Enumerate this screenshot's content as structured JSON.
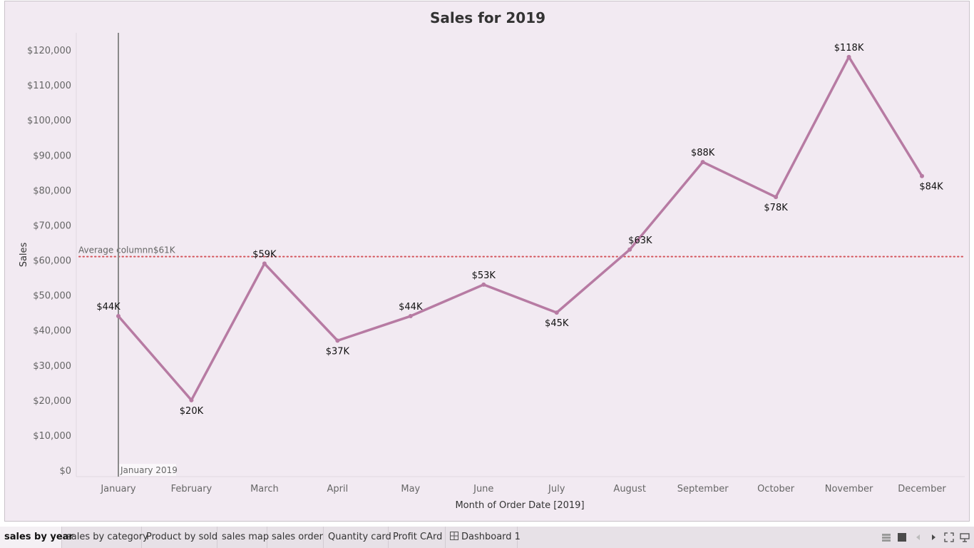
{
  "chart_data": {
    "type": "line",
    "title": "Sales for 2019",
    "xlabel": "Month of Order Date [2019]",
    "ylabel": "Sales",
    "categories": [
      "January",
      "February",
      "March",
      "April",
      "May",
      "June",
      "July",
      "August",
      "September",
      "October",
      "November",
      "December"
    ],
    "values": [
      44000,
      20000,
      59000,
      37000,
      44000,
      53000,
      45000,
      63000,
      88000,
      78000,
      118000,
      84000
    ],
    "data_labels": [
      "$44K",
      "$20K",
      "$59K",
      "$37K",
      "$44K",
      "$53K",
      "$45K",
      "$63K",
      "$88K",
      "$78K",
      "$118K",
      "$84K"
    ],
    "ylim": [
      0,
      125000
    ],
    "yticks": [
      0,
      10000,
      20000,
      30000,
      40000,
      50000,
      60000,
      70000,
      80000,
      90000,
      100000,
      110000,
      120000
    ],
    "ytick_labels": [
      "$0",
      "$10,000",
      "$20,000",
      "$30,000",
      "$40,000",
      "$50,000",
      "$60,000",
      "$70,000",
      "$80,000",
      "$90,000",
      "$100,000",
      "$110,000",
      "$120,000"
    ],
    "line_color": "#b77ba3",
    "grid": false,
    "reference_line": {
      "value": 61000,
      "label": "Average columnn$61K",
      "color": "#d4545b",
      "style": "dotted"
    },
    "marker_line": {
      "category": "January",
      "label": "January 2019"
    }
  },
  "tabs": [
    {
      "label": "sales by year",
      "active": true
    },
    {
      "label": "sales by category",
      "active": false
    },
    {
      "label": "Product  by sold",
      "active": false
    },
    {
      "label": "sales map",
      "active": false
    },
    {
      "label": "sales  order",
      "active": false
    },
    {
      "label": "Quantity card",
      "active": false
    },
    {
      "label": "Profit CArd",
      "active": false
    },
    {
      "label": "Dashboard 1",
      "active": false,
      "icon": "dashboard-grid-icon"
    }
  ],
  "toolbar_icons": [
    "grid-view-icon",
    "single-view-icon",
    "previous-sheet-icon",
    "next-sheet-icon",
    "fullscreen-icon",
    "presentation-icon"
  ]
}
